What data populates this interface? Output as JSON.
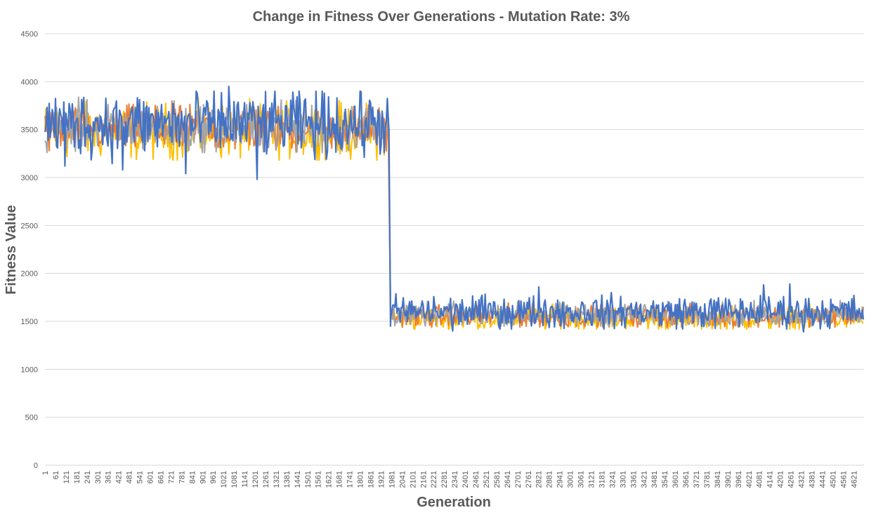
{
  "chart_data": {
    "type": "line",
    "title": "Change in Fitness Over Generations - Mutation Rate: 3%",
    "xlabel": "Generation",
    "ylabel": "Fitness Value",
    "ylim": [
      0,
      4500
    ],
    "yticks": [
      0,
      500,
      1000,
      1500,
      2000,
      2500,
      3000,
      3500,
      4000,
      4500
    ],
    "xlim": [
      1,
      4680
    ],
    "xtick_start": 1,
    "xtick_step": 60,
    "xtick_end": 4621,
    "grid": true,
    "legend": "none",
    "colors": {
      "series_blue": "#4472c4",
      "series_orange": "#ed7d31",
      "series_gray": "#a5a5a5",
      "series_yellow": "#ffc000",
      "grid": "#d9d9d9",
      "text": "#595959"
    },
    "series": [
      {
        "color": "#4472c4",
        "segments": [
          {
            "x_start": 1,
            "x_end": 1965,
            "mean": 3560,
            "low": 3120,
            "high": 3900,
            "spikes": [
              [
                1051,
                3950
              ],
              [
                1211,
                2980
              ],
              [
                111,
                3120
              ],
              [
                441,
                3080
              ],
              [
                801,
                3040
              ]
            ]
          },
          {
            "x_start": 1966,
            "x_end": 1975,
            "drop_to": 1450
          },
          {
            "x_start": 1976,
            "x_end": 4680,
            "mean": 1600,
            "low": 1420,
            "high": 1800,
            "spikes": [
              [
                4251,
                1890
              ],
              [
                4101,
                1880
              ],
              [
                2821,
                1860
              ],
              [
                2326,
                1400
              ],
              [
                4331,
                1390
              ]
            ]
          }
        ]
      },
      {
        "color": "#ffc000",
        "segments": [
          {
            "x_start": 1,
            "x_end": 1965,
            "mean": 3480,
            "low": 3180,
            "high": 3830
          },
          {
            "x_start": 1976,
            "x_end": 4680,
            "mean": 1530,
            "low": 1420,
            "high": 1700
          }
        ]
      },
      {
        "color": "#ed7d31",
        "segments": [
          {
            "x_start": 1,
            "x_end": 1965,
            "mean": 3500,
            "low": 3250,
            "high": 3800
          },
          {
            "x_start": 1976,
            "x_end": 4680,
            "mean": 1550,
            "low": 1440,
            "high": 1700
          }
        ]
      },
      {
        "color": "#a5a5a5",
        "segments": [
          {
            "x_start": 1,
            "x_end": 1965,
            "mean": 3520,
            "low": 3260,
            "high": 3850
          },
          {
            "x_start": 1976,
            "x_end": 4680,
            "mean": 1570,
            "low": 1450,
            "high": 1720
          }
        ]
      }
    ]
  }
}
